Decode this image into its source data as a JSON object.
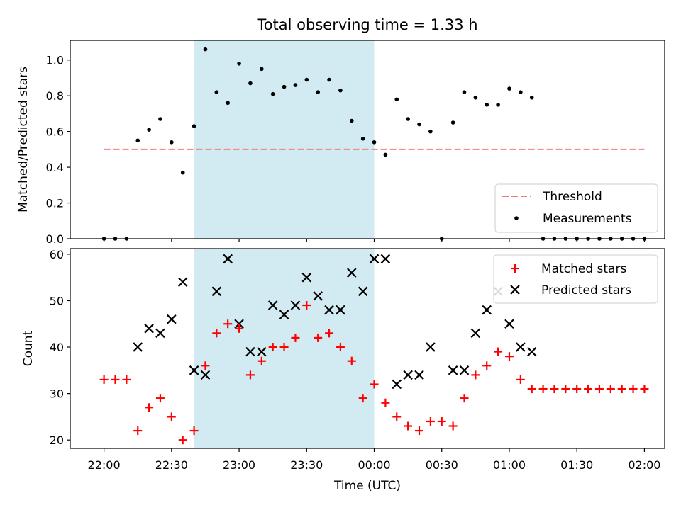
{
  "colors": {
    "highlight": "#add8e6",
    "threshold": "#f08080",
    "measurement": "#000000",
    "matched": "#ff0000",
    "predicted": "#000000"
  },
  "chart_data": [
    {
      "type": "scatter",
      "title": "Total observing time = 1.33 h",
      "xlabel": "",
      "ylabel": "Matched/Predicted stars",
      "ylim": [
        0,
        1.11
      ],
      "yticks": [
        "0.0",
        "0.2",
        "0.4",
        "0.6",
        "0.8",
        "1.0"
      ],
      "xlim_hours": [
        -0.25,
        4.15
      ],
      "highlight_span": {
        "start": "22:40",
        "end": "00:00"
      },
      "threshold": {
        "name": "Threshold",
        "value": 0.5,
        "x_start": "22:00",
        "x_end": "02:00"
      },
      "legend_position": "lower-right",
      "series": [
        {
          "name": "Measurements",
          "x": [
            "22:00",
            "22:05",
            "22:10",
            "22:15",
            "22:20",
            "22:25",
            "22:30",
            "22:35",
            "22:40",
            "22:45",
            "22:50",
            "22:55",
            "23:00",
            "23:05",
            "23:10",
            "23:15",
            "23:20",
            "23:25",
            "23:30",
            "23:35",
            "23:40",
            "23:45",
            "23:50",
            "23:55",
            "00:00",
            "00:05",
            "00:10",
            "00:15",
            "00:20",
            "00:25",
            "00:30",
            "00:35",
            "00:40",
            "00:45",
            "00:50",
            "00:55",
            "01:00",
            "01:05",
            "01:10",
            "01:15",
            "01:20",
            "01:25",
            "01:30",
            "01:35",
            "01:40",
            "01:45",
            "01:50",
            "01:55",
            "02:00"
          ],
          "y": [
            0,
            0,
            0,
            0.55,
            0.61,
            0.67,
            0.54,
            0.37,
            0.63,
            1.06,
            0.82,
            0.76,
            0.98,
            0.87,
            0.95,
            0.81,
            0.85,
            0.86,
            0.89,
            0.82,
            0.89,
            0.83,
            0.66,
            0.56,
            0.54,
            0.47,
            0.78,
            0.67,
            0.64,
            0.6,
            0,
            0.65,
            0.82,
            0.79,
            0.75,
            0.75,
            0.84,
            0.82,
            0.79,
            0,
            0,
            0,
            0,
            0,
            0,
            0,
            0,
            0,
            0
          ]
        }
      ]
    },
    {
      "type": "scatter",
      "xlabel": "Time (UTC)",
      "ylabel": "Count",
      "ylim": [
        18.2,
        61.2
      ],
      "yticks": [
        "20",
        "30",
        "40",
        "50",
        "60"
      ],
      "xticks": [
        "22:00",
        "22:30",
        "23:00",
        "23:30",
        "00:00",
        "00:30",
        "01:00",
        "01:30",
        "02:00"
      ],
      "xlim_hours": [
        -0.25,
        4.15
      ],
      "highlight_span": {
        "start": "22:40",
        "end": "00:00"
      },
      "legend_position": "upper-right",
      "series": [
        {
          "name": "Matched stars",
          "marker": "+",
          "x": [
            "22:00",
            "22:05",
            "22:10",
            "22:15",
            "22:20",
            "22:25",
            "22:30",
            "22:35",
            "22:40",
            "22:45",
            "22:50",
            "22:55",
            "23:00",
            "23:05",
            "23:10",
            "23:15",
            "23:20",
            "23:25",
            "23:30",
            "23:35",
            "23:40",
            "23:45",
            "23:50",
            "23:55",
            "00:00",
            "00:05",
            "00:10",
            "00:15",
            "00:20",
            "00:25",
            "00:30",
            "00:35",
            "00:40",
            "00:45",
            "00:50",
            "00:55",
            "01:00",
            "01:05",
            "01:10",
            "01:15",
            "01:20",
            "01:25",
            "01:30",
            "01:35",
            "01:40",
            "01:45",
            "01:50",
            "01:55",
            "02:00"
          ],
          "y": [
            33,
            33,
            33,
            22,
            27,
            29,
            25,
            20,
            22,
            36,
            43,
            45,
            44,
            34,
            37,
            40,
            40,
            42,
            49,
            42,
            43,
            40,
            37,
            29,
            32,
            28,
            25,
            23,
            22,
            24,
            24,
            23,
            29,
            34,
            36,
            39,
            38,
            33,
            31,
            31,
            31,
            31,
            31,
            31,
            31,
            31,
            31,
            31,
            31
          ]
        },
        {
          "name": "Predicted stars",
          "marker": "x",
          "x": [
            "22:15",
            "22:20",
            "22:25",
            "22:30",
            "22:35",
            "22:40",
            "22:45",
            "22:50",
            "22:55",
            "23:00",
            "23:05",
            "23:10",
            "23:15",
            "23:20",
            "23:25",
            "23:30",
            "23:35",
            "23:40",
            "23:45",
            "23:50",
            "23:55",
            "00:00",
            "00:05",
            "00:10",
            "00:15",
            "00:20",
            "00:25",
            "00:35",
            "00:40",
            "00:45",
            "00:50",
            "00:55",
            "01:00",
            "01:05",
            "01:10"
          ],
          "y": [
            40,
            44,
            43,
            46,
            54,
            35,
            34,
            52,
            59,
            45,
            39,
            39,
            49,
            47,
            49,
            55,
            51,
            48,
            48,
            56,
            52,
            59,
            59,
            32,
            34,
            34,
            40,
            35,
            35,
            43,
            48,
            52,
            45,
            40,
            39
          ]
        }
      ]
    }
  ]
}
